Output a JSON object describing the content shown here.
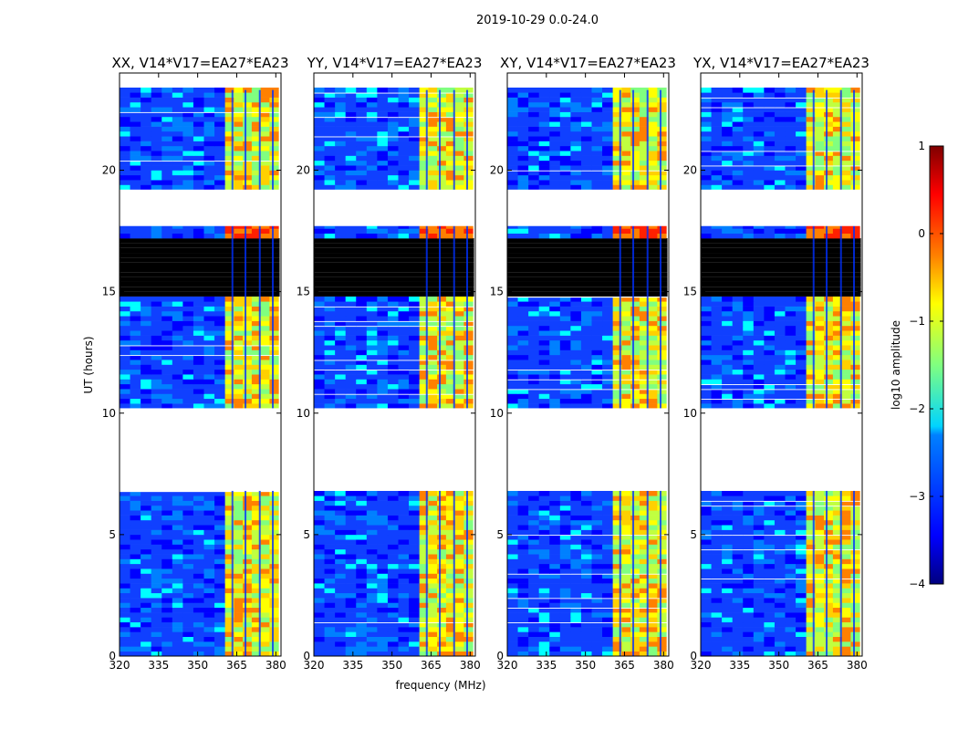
{
  "figure": {
    "suptitle": "2019-10-29 0.0-24.0"
  },
  "chart_data": {
    "type": "heatmap",
    "xlabel": "frequency (MHz)",
    "ylabel": "UT (hours)",
    "xlim": [
      320,
      382
    ],
    "ylim": [
      0,
      24
    ],
    "xticks": [
      320,
      335,
      350,
      365,
      380
    ],
    "yticks": [
      0,
      5,
      10,
      15,
      20
    ],
    "panels": [
      {
        "title": "XX, V14*V17=EA27*EA23",
        "pol": "XX"
      },
      {
        "title": "YY, V14*V17=EA27*EA23",
        "pol": "YY"
      },
      {
        "title": "XY, V14*V17=EA27*EA23",
        "pol": "XY"
      },
      {
        "title": "YX, V14*V17=EA27*EA23",
        "pol": "YX"
      }
    ],
    "colorbar": {
      "label": "log10 amplitude",
      "ticks": [
        1,
        0,
        -1,
        -2,
        -3,
        -4
      ],
      "range": [
        -4,
        1
      ],
      "colors": [
        "#00007f",
        "#0000ff",
        "#0080ff",
        "#00ffff",
        "#80ff80",
        "#ffff00",
        "#ff8000",
        "#ff0000",
        "#7f0000"
      ]
    },
    "blank_time_ranges_hours": [
      [
        6.8,
        10.2
      ],
      [
        17.7,
        19.2
      ]
    ],
    "flagged_time_ranges_hours": [
      [
        14.8,
        17.1
      ]
    ],
    "bright_band_MHz": [
      360.5,
      381
    ],
    "data_band_MHz": [
      320,
      381.5
    ],
    "data_time_range_hours": [
      0,
      23.3
    ]
  }
}
